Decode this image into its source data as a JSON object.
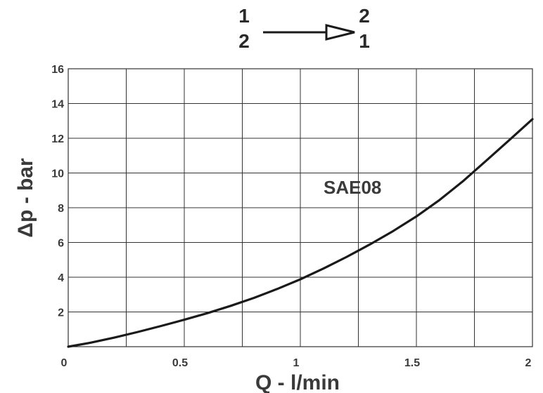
{
  "flow_indicator": {
    "from_top": "1",
    "from_bottom": "2",
    "to_top": "2",
    "to_bottom": "1"
  },
  "chart_data": {
    "type": "line",
    "xlabel": "Q - l/min",
    "ylabel": "Δp - bar",
    "xlim": [
      0,
      2
    ],
    "ylim": [
      0,
      16
    ],
    "x_ticks": [
      "0",
      "0.5",
      "1",
      "1.5",
      "2"
    ],
    "y_ticks": [
      "2",
      "4",
      "6",
      "8",
      "10",
      "12",
      "14",
      "16"
    ],
    "x_grid_step": 0.25,
    "y_grid_step": 2,
    "grid": true,
    "colors": {
      "line": "#1a1a1a",
      "grid": "#333333",
      "text": "#3a3a3a"
    },
    "series": [
      {
        "name": "SAE08",
        "x": [
          0,
          0.1,
          0.2,
          0.3,
          0.4,
          0.5,
          0.6,
          0.7,
          0.8,
          0.9,
          1.0,
          1.1,
          1.2,
          1.3,
          1.4,
          1.5,
          1.6,
          1.7,
          1.8,
          1.9,
          2.0
        ],
        "y": [
          0,
          0.24,
          0.53,
          0.85,
          1.19,
          1.55,
          1.93,
          2.35,
          2.81,
          3.32,
          3.88,
          4.5,
          5.17,
          5.89,
          6.66,
          7.5,
          8.45,
          9.52,
          10.7,
          11.89,
          13.1
        ]
      }
    ]
  }
}
